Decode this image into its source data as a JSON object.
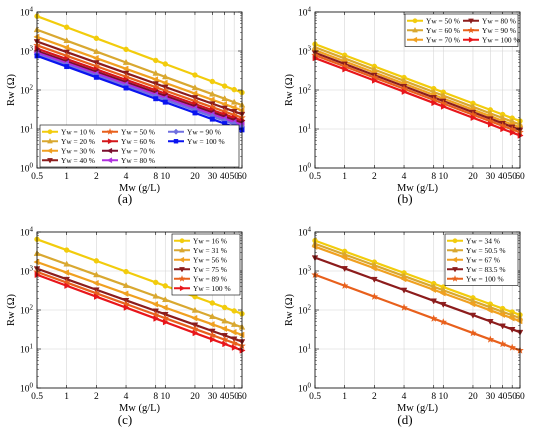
{
  "figure": {
    "panel_labels": [
      "(a)",
      "(b)",
      "(c)",
      "(d)"
    ]
  },
  "chart_data": [
    {
      "type": "line",
      "panel": "(a)",
      "xlabel": "Mw (g/L)",
      "ylabel": "Rw (Ω)",
      "xscale": "log",
      "yscale": "log",
      "xlim": [
        0.5,
        60
      ],
      "ylim": [
        1,
        10000
      ],
      "grid": true,
      "legend_position": "bottom-left",
      "x_ticks": [
        "0.5",
        "1",
        "2",
        "4",
        "8",
        "10",
        "20",
        "30",
        "40",
        "50",
        "60"
      ],
      "y_ticks": [
        "10^0",
        "10^1",
        "10^2",
        "10^3",
        "10^4"
      ],
      "x": [
        0.5,
        1,
        2,
        4,
        8,
        10,
        20,
        30,
        40,
        50,
        60
      ],
      "series": [
        {
          "name": "Yw = 10 %",
          "color": "#F2CC0C",
          "marker": "circle",
          "y0": 7800,
          "y60": 86
        },
        {
          "name": "Yw = 20 %",
          "color": "#D9A830",
          "marker": "triangle-up",
          "y0": 3500,
          "y60": 41
        },
        {
          "name": "Yw = 30 %",
          "color": "#F0A020",
          "marker": "triangle-left",
          "y0": 2300,
          "y60": 30
        },
        {
          "name": "Yw = 40 %",
          "color": "#8C1C1C",
          "marker": "triangle-down",
          "y0": 1750,
          "y60": 24
        },
        {
          "name": "Yw = 50 %",
          "color": "#E8601C",
          "marker": "star",
          "y0": 1400,
          "y60": 19.5
        },
        {
          "name": "Yw = 60 %",
          "color": "#D4161B",
          "marker": "triangle-right",
          "y0": 1150,
          "y60": 16.5
        },
        {
          "name": "Yw = 70 %",
          "color": "#7A0E2E",
          "marker": "triangle-left",
          "y0": 1000,
          "y60": 14.5
        },
        {
          "name": "Yw = 80 %",
          "color": "#B030E0",
          "marker": "triangle-left",
          "y0": 900,
          "y60": 12.8
        },
        {
          "name": "Yw = 90 %",
          "color": "#7070E0",
          "marker": "diamond",
          "y0": 820,
          "y60": 11.3
        },
        {
          "name": "Yw = 100 %",
          "color": "#0A14F0",
          "marker": "square",
          "y0": 750,
          "y60": 9.5
        }
      ]
    },
    {
      "type": "line",
      "panel": "(b)",
      "xlabel": "Mw (g/L)",
      "ylabel": "Rw (Ω)",
      "xscale": "log",
      "yscale": "log",
      "xlim": [
        0.5,
        60
      ],
      "ylim": [
        1,
        10000
      ],
      "grid": true,
      "legend_position": "top-right",
      "x_ticks": [
        "0.5",
        "1",
        "2",
        "4",
        "8",
        "10",
        "20",
        "30",
        "40",
        "50",
        "60"
      ],
      "y_ticks": [
        "10^0",
        "10^1",
        "10^2",
        "10^3",
        "10^4"
      ],
      "x": [
        0.5,
        1,
        2,
        4,
        8,
        10,
        20,
        30,
        40,
        50,
        60
      ],
      "series": [
        {
          "name": "Yw = 50 %",
          "color": "#F2CC0C",
          "marker": "circle",
          "y0": 1500,
          "y60": 16
        },
        {
          "name": "Yw = 60 %",
          "color": "#D9A830",
          "marker": "triangle-up",
          "y0": 1250,
          "y60": 13
        },
        {
          "name": "Yw = 70 %",
          "color": "#F0A020",
          "marker": "triangle-left",
          "y0": 1050,
          "y60": 11
        },
        {
          "name": "Yw = 80 %",
          "color": "#8C1C1C",
          "marker": "triangle-down",
          "y0": 900,
          "y60": 9.5
        },
        {
          "name": "Yw = 90 %",
          "color": "#E8601C",
          "marker": "star",
          "y0": 780,
          "y60": 8.2
        },
        {
          "name": "Yw = 100 %",
          "color": "#E8161B",
          "marker": "triangle-right",
          "y0": 660,
          "y60": 6.8
        }
      ]
    },
    {
      "type": "line",
      "panel": "(c)",
      "xlabel": "Mw (g/L)",
      "ylabel": "Rw (Ω)",
      "xscale": "log",
      "yscale": "log",
      "xlim": [
        0.5,
        60
      ],
      "ylim": [
        1,
        10000
      ],
      "grid": true,
      "legend_position": "top-right",
      "x_ticks": [
        "0.5",
        "1",
        "2",
        "4",
        "8",
        "10",
        "20",
        "30",
        "40",
        "50",
        "60"
      ],
      "y_ticks": [
        "10^0",
        "10^1",
        "10^2",
        "10^3",
        "10^4"
      ],
      "x": [
        0.5,
        1,
        2,
        4,
        8,
        10,
        20,
        30,
        40,
        50,
        60
      ],
      "series": [
        {
          "name": "Yw = 16 %",
          "color": "#F2CC0C",
          "marker": "circle",
          "y0": 6500,
          "y60": 80
        },
        {
          "name": "Yw = 31 %",
          "color": "#D9A830",
          "marker": "triangle-up",
          "y0": 2800,
          "y60": 36
        },
        {
          "name": "Yw = 56 %",
          "color": "#F0A020",
          "marker": "triangle-left",
          "y0": 1700,
          "y60": 23
        },
        {
          "name": "Yw = 75 %",
          "color": "#8C1C1C",
          "marker": "triangle-down",
          "y0": 1150,
          "y60": 15.5
        },
        {
          "name": "Yw = 89 %",
          "color": "#E8601C",
          "marker": "star",
          "y0": 950,
          "y60": 12
        },
        {
          "name": "Yw = 100 %",
          "color": "#E8161B",
          "marker": "triangle-right",
          "y0": 800,
          "y60": 9.2
        }
      ]
    },
    {
      "type": "line",
      "panel": "(d)",
      "xlabel": "Mw (g/L)",
      "ylabel": "Rw (Ω)",
      "xscale": "log",
      "yscale": "log",
      "xlim": [
        0.5,
        60
      ],
      "ylim": [
        1,
        10000
      ],
      "grid": true,
      "legend_position": "top-right",
      "x_ticks": [
        "0.5",
        "1",
        "2",
        "4",
        "8",
        "10",
        "20",
        "30",
        "40",
        "50",
        "60"
      ],
      "y_ticks": [
        "10^0",
        "10^1",
        "10^2",
        "10^3",
        "10^4"
      ],
      "x": [
        0.5,
        1,
        2,
        4,
        8,
        10,
        20,
        30,
        40,
        50,
        60
      ],
      "series": [
        {
          "name": "Yw = 34 %",
          "color": "#F2CC0C",
          "marker": "circle",
          "y0": 6000,
          "y60": 75
        },
        {
          "name": "Yw = 50.5 %",
          "color": "#D9A830",
          "marker": "triangle-up",
          "y0": 5000,
          "y60": 62
        },
        {
          "name": "Yw = 67 %",
          "color": "#F0A020",
          "marker": "triangle-left",
          "y0": 4200,
          "y60": 52
        },
        {
          "name": "Yw = 83.5 %",
          "color": "#8C1C1C",
          "marker": "triangle-down",
          "y0": 2200,
          "y60": 27
        },
        {
          "name": "Yw = 100 %",
          "color": "#E8601C",
          "marker": "star",
          "y0": 800,
          "y60": 9.2
        }
      ]
    }
  ]
}
